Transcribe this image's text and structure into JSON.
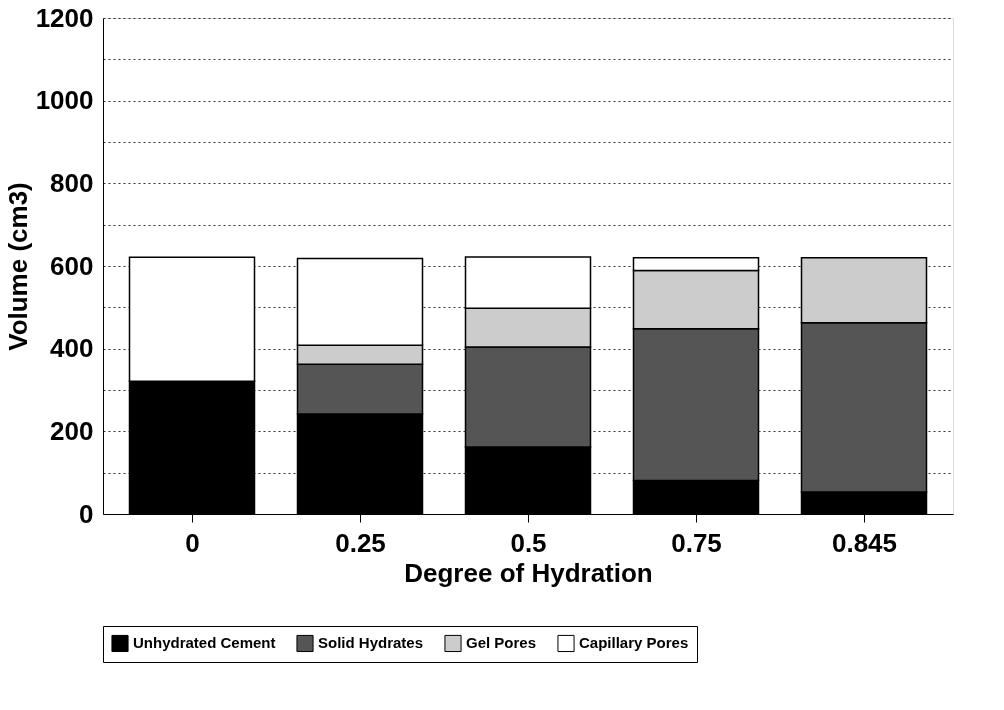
{
  "chart_data": {
    "type": "bar",
    "stacked": true,
    "xlabel": "Degree of Hydration",
    "ylabel": "Volume (cm3)",
    "categories": [
      "0",
      "0.25",
      "0.5",
      "0.75",
      "0.845"
    ],
    "series": [
      {
        "name": "Unhydrated Cement",
        "color": "#000000",
        "values": [
          321,
          242,
          162,
          81,
          53
        ]
      },
      {
        "name": "Solid Hydrates",
        "color": "#555555",
        "values": [
          0,
          120,
          242,
          367,
          410
        ]
      },
      {
        "name": "Gel Pores",
        "color": "#cccccc",
        "values": [
          0,
          46,
          94,
          141,
          157
        ]
      },
      {
        "name": "Capillary Pores",
        "color": "#ffffff",
        "values": [
          300,
          210,
          124,
          31,
          0
        ]
      }
    ],
    "ylim": [
      0,
      1200
    ],
    "yticks": [
      0,
      {
        "value": 100,
        "label": null
      },
      200,
      {
        "value": 300,
        "label": null
      },
      400,
      {
        "value": 500,
        "label": null
      },
      600,
      {
        "value": 700,
        "label": null
      },
      800,
      {
        "value": 900,
        "label": null
      },
      1000,
      {
        "value": 1100,
        "label": null
      },
      1200
    ],
    "grid": "y",
    "legend": "bottom"
  }
}
